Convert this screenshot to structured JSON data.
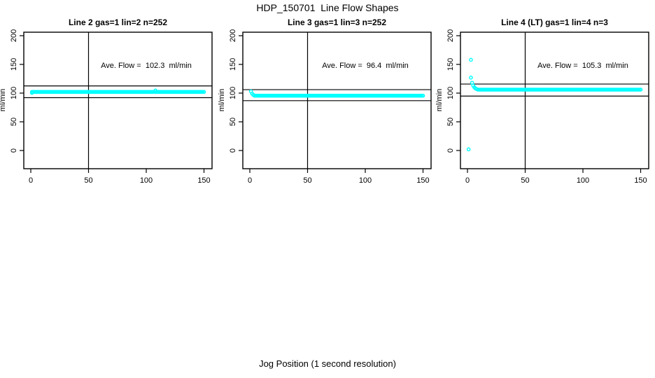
{
  "title": "HDP_150701  Line Flow Shapes",
  "xlabel": "Jog Position (1 second resolution)",
  "chart_data": [
    {
      "type": "scatter",
      "title": "Line 2 gas=1 lin=2 n=252",
      "annotation": "Ave. Flow =  102.3  ml/min",
      "ave_flow_ml_min": 102.3,
      "n": 252,
      "ylabel": "ml/min",
      "x_ticks": [
        0,
        50,
        100,
        150
      ],
      "y_ticks": [
        0,
        50,
        100,
        150,
        200
      ],
      "xlim": [
        0,
        150
      ],
      "ylim": [
        0,
        200
      ],
      "vlines": [
        50
      ],
      "hlines": [
        92.1,
        112.5
      ],
      "point_color": "#00FFFF",
      "axis_color": "#000000",
      "series": {
        "points": [
          [
            1,
            100.5
          ],
          [
            108,
            104.5
          ]
        ],
        "segments": [
          {
            "x_from": 1,
            "x_to": 150,
            "step": 1,
            "y": 102
          }
        ]
      }
    },
    {
      "type": "scatter",
      "title": "Line 3 gas=1 lin=3 n=252",
      "annotation": "Ave. Flow =  96.4  ml/min",
      "ave_flow_ml_min": 96.4,
      "n": 252,
      "ylabel": "ml/min",
      "x_ticks": [
        0,
        50,
        100,
        150
      ],
      "y_ticks": [
        0,
        50,
        100,
        150,
        200
      ],
      "xlim": [
        0,
        150
      ],
      "ylim": [
        0,
        200
      ],
      "vlines": [
        50
      ],
      "hlines": [
        86.8,
        106.0
      ],
      "point_color": "#00FFFF",
      "axis_color": "#000000",
      "series": {
        "points": [
          [
            1,
            103
          ],
          [
            2,
            99
          ],
          [
            3,
            97
          ]
        ],
        "segments": [
          {
            "x_from": 4,
            "x_to": 150,
            "step": 1,
            "y": 95.5
          }
        ]
      }
    },
    {
      "type": "scatter",
      "title": "Line 4 (LT) gas=1 lin=4 n=3",
      "annotation": "Ave. Flow =  105.3  ml/min",
      "ave_flow_ml_min": 105.3,
      "n": 3,
      "ylabel": "ml/min",
      "x_ticks": [
        0,
        50,
        100,
        150
      ],
      "y_ticks": [
        0,
        50,
        100,
        150,
        200
      ],
      "xlim": [
        0,
        150
      ],
      "ylim": [
        0,
        200
      ],
      "vlines": [
        50
      ],
      "hlines": [
        94.8,
        115.8
      ],
      "point_color": "#00FFFF",
      "axis_color": "#000000",
      "series": {
        "points": [
          [
            1,
            2
          ],
          [
            3,
            158
          ],
          [
            3,
            127
          ],
          [
            4,
            118
          ],
          [
            5,
            113
          ],
          [
            6,
            110
          ],
          [
            7,
            108
          ],
          [
            8,
            107
          ]
        ],
        "segments": [
          {
            "x_from": 9,
            "x_to": 150,
            "step": 1,
            "y": 106
          }
        ]
      }
    }
  ]
}
